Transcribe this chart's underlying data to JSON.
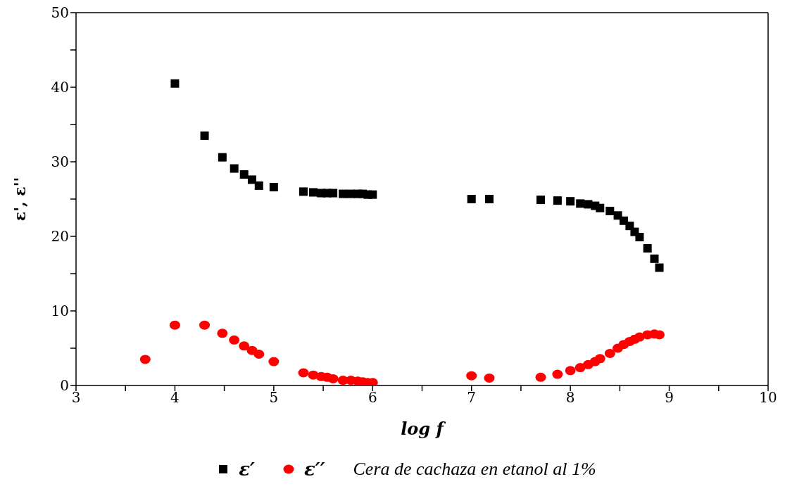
{
  "chart_data": {
    "type": "scatter",
    "xlabel": "log f",
    "ylabel": "ε', ε''",
    "xlim": [
      3,
      10
    ],
    "xticks": [
      3,
      {
        "value": 3.5,
        "label": null
      },
      4,
      {
        "value": 4.5,
        "label": null
      },
      5,
      {
        "value": 5.5,
        "label": null
      },
      6,
      {
        "value": 6.5,
        "label": null
      },
      7,
      {
        "value": 7.5,
        "label": null
      },
      8,
      {
        "value": 8.5,
        "label": null
      },
      9,
      {
        "value": 9.5,
        "label": null
      },
      10
    ],
    "ylim": [
      0,
      50
    ],
    "yticks": [
      0,
      {
        "value": 5,
        "label": null
      },
      10,
      {
        "value": 15,
        "label": null
      },
      20,
      {
        "value": 25,
        "label": null
      },
      30,
      {
        "value": 35,
        "label": null
      },
      40,
      {
        "value": 45,
        "label": null
      },
      50
    ],
    "grid": false,
    "legend": "bottom",
    "annotations": [
      "Cera de cachaza en etanol al 1%"
    ],
    "series": [
      {
        "name": "ε′",
        "color": "#000000",
        "marker": "square",
        "x": [
          4.0,
          4.3,
          4.48,
          4.6,
          4.7,
          4.78,
          4.85,
          5.0,
          5.3,
          5.4,
          5.48,
          5.54,
          5.6,
          5.7,
          5.78,
          5.85,
          5.9,
          5.95,
          6.0,
          7.0,
          7.18,
          7.7,
          7.87,
          8.0,
          8.1,
          8.18,
          8.25,
          8.3,
          8.4,
          8.48,
          8.54,
          8.6,
          8.65,
          8.7,
          8.78,
          8.85,
          8.9
        ],
        "values": [
          40.5,
          33.5,
          30.6,
          29.1,
          28.3,
          27.6,
          26.8,
          26.6,
          26.0,
          25.9,
          25.8,
          25.8,
          25.8,
          25.7,
          25.7,
          25.7,
          25.7,
          25.6,
          25.6,
          25.0,
          25.0,
          24.9,
          24.8,
          24.7,
          24.4,
          24.3,
          24.1,
          23.8,
          23.4,
          22.8,
          22.1,
          21.4,
          20.6,
          19.9,
          18.4,
          17.0,
          15.8
        ]
      },
      {
        "name": "ε′′",
        "color": "#ff0000",
        "marker": "circle",
        "x": [
          3.7,
          4.0,
          4.3,
          4.48,
          4.6,
          4.7,
          4.78,
          4.85,
          5.0,
          5.3,
          5.4,
          5.48,
          5.54,
          5.6,
          5.7,
          5.78,
          5.85,
          5.9,
          5.95,
          6.0,
          7.0,
          7.18,
          7.7,
          7.87,
          8.0,
          8.1,
          8.18,
          8.25,
          8.3,
          8.4,
          8.48,
          8.54,
          8.6,
          8.65,
          8.7,
          8.78,
          8.85,
          8.9
        ],
        "values": [
          3.5,
          8.1,
          8.1,
          7.0,
          6.1,
          5.3,
          4.7,
          4.2,
          3.2,
          1.7,
          1.4,
          1.2,
          1.1,
          0.9,
          0.7,
          0.7,
          0.6,
          0.5,
          0.4,
          0.4,
          1.3,
          1.0,
          1.1,
          1.5,
          2.0,
          2.4,
          2.8,
          3.2,
          3.6,
          4.3,
          5.0,
          5.5,
          5.9,
          6.2,
          6.5,
          6.8,
          6.9,
          6.8
        ]
      }
    ]
  }
}
